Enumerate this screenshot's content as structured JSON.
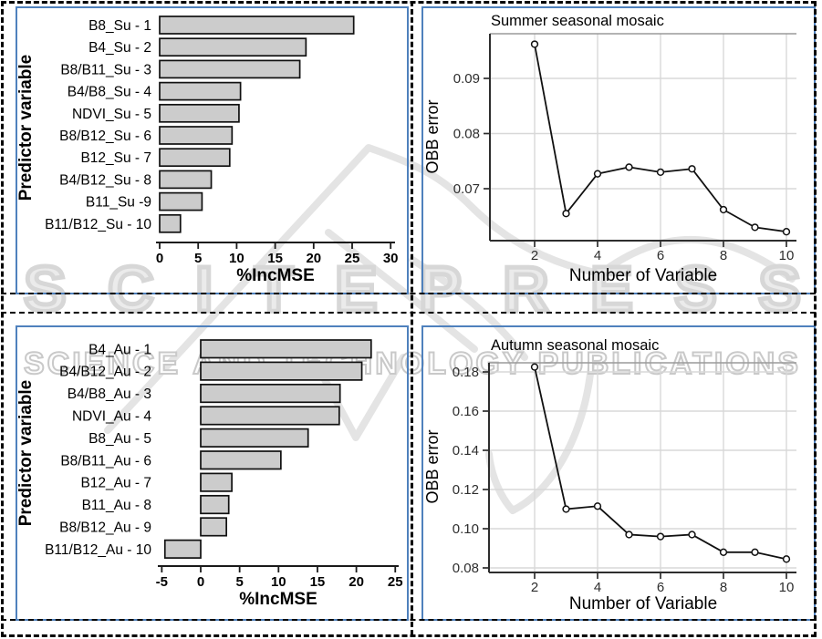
{
  "watermark": {
    "brand": "SCITEPRESS",
    "tagline_words": [
      "SCIENCE",
      "AND",
      "TECHNOLOGY",
      "PUBLICATIONS"
    ]
  },
  "colors": {
    "panel_border": "#4f81bd",
    "bar_fill": "#cccccc",
    "bar_stroke": "#111111",
    "grid": "#d8d8d8",
    "axis_dark": "#2e2e2e",
    "panel_top_border": "#9a9a9a",
    "watermark_gray": "#d7d7d7",
    "dashed_border": "#000000"
  },
  "chart_data": [
    {
      "id": "summer-importance",
      "type": "bar",
      "orientation": "horizontal",
      "title": "",
      "xlabel": "%IncMSE",
      "ylabel": "Predictor variable",
      "categories": [
        "B8_Su - 1",
        "B4_Su - 2",
        "B8/B11_Su - 3",
        "B4/B8_Su - 4",
        "NDVI_Su - 5",
        "B8/B12_Su - 6",
        "B12_Su - 7",
        "B4/B12_Su - 8",
        "B11_Su -9",
        "B11/B12_Su - 10"
      ],
      "values": [
        25.2,
        19.0,
        18.2,
        10.5,
        10.3,
        9.4,
        9.1,
        6.7,
        5.5,
        2.7
      ],
      "xticks": [
        0,
        5,
        10,
        15,
        20,
        25,
        30
      ],
      "xlim": [
        0,
        30.5
      ],
      "grid": false
    },
    {
      "id": "summer-obb",
      "type": "line",
      "title": "Summer seasonal mosaic",
      "xlabel": "Number of Variable",
      "ylabel": "OBB error",
      "x": [
        2,
        3,
        4,
        5,
        6,
        7,
        8,
        9,
        10
      ],
      "y": [
        0.0962,
        0.0655,
        0.0727,
        0.0739,
        0.073,
        0.0736,
        0.0662,
        0.063,
        0.0622
      ],
      "xticks": [
        2,
        4,
        6,
        8,
        10
      ],
      "yticks": [
        0.07,
        0.08,
        0.09
      ],
      "ytick_labels": [
        "0.07",
        "0.08",
        "0.09"
      ],
      "xlim": [
        0.6,
        10.3
      ],
      "ylim": [
        0.0605,
        0.0985
      ],
      "grid": true,
      "marker": "open-circle",
      "legend": "none"
    },
    {
      "id": "autumn-importance",
      "type": "bar",
      "orientation": "horizontal",
      "title": "",
      "xlabel": "%IncMSE",
      "ylabel": "Predictor variable",
      "categories": [
        "B4_Au - 1",
        "B4/B12_Au - 2",
        "B4/B8_Au - 3",
        "NDVI_Au - 4",
        "B8_Au - 5",
        "B8/B11_Au - 6",
        "B12_Au - 7",
        "B11_Au - 8",
        "B8/B12_Au - 9",
        "B11/B12_Au - 10"
      ],
      "values": [
        21.9,
        20.7,
        17.9,
        17.8,
        13.8,
        10.3,
        4.0,
        3.6,
        3.3,
        -4.6
      ],
      "xticks": [
        -5,
        0,
        5,
        10,
        15,
        20,
        25
      ],
      "xlim": [
        -5.2,
        25.2
      ],
      "grid": false
    },
    {
      "id": "autumn-obb",
      "type": "line",
      "title": "Autumn seasonal mosaic",
      "xlabel": "Number of Variable",
      "ylabel": "OBB error",
      "x": [
        2,
        3,
        4,
        5,
        6,
        7,
        8,
        9,
        10
      ],
      "y": [
        0.1825,
        0.11,
        0.1115,
        0.097,
        0.096,
        0.097,
        0.088,
        0.088,
        0.0845
      ],
      "xticks": [
        2,
        4,
        6,
        8,
        10
      ],
      "yticks": [
        0.08,
        0.1,
        0.12,
        0.14,
        0.16,
        0.18
      ],
      "ytick_labels": [
        "0.08",
        "0.10",
        "0.12",
        "0.14",
        "0.16",
        "0.18"
      ],
      "xlim": [
        0.6,
        10.3
      ],
      "ylim": [
        0.077,
        0.187
      ],
      "grid": true,
      "marker": "open-circle",
      "legend": "none"
    }
  ]
}
